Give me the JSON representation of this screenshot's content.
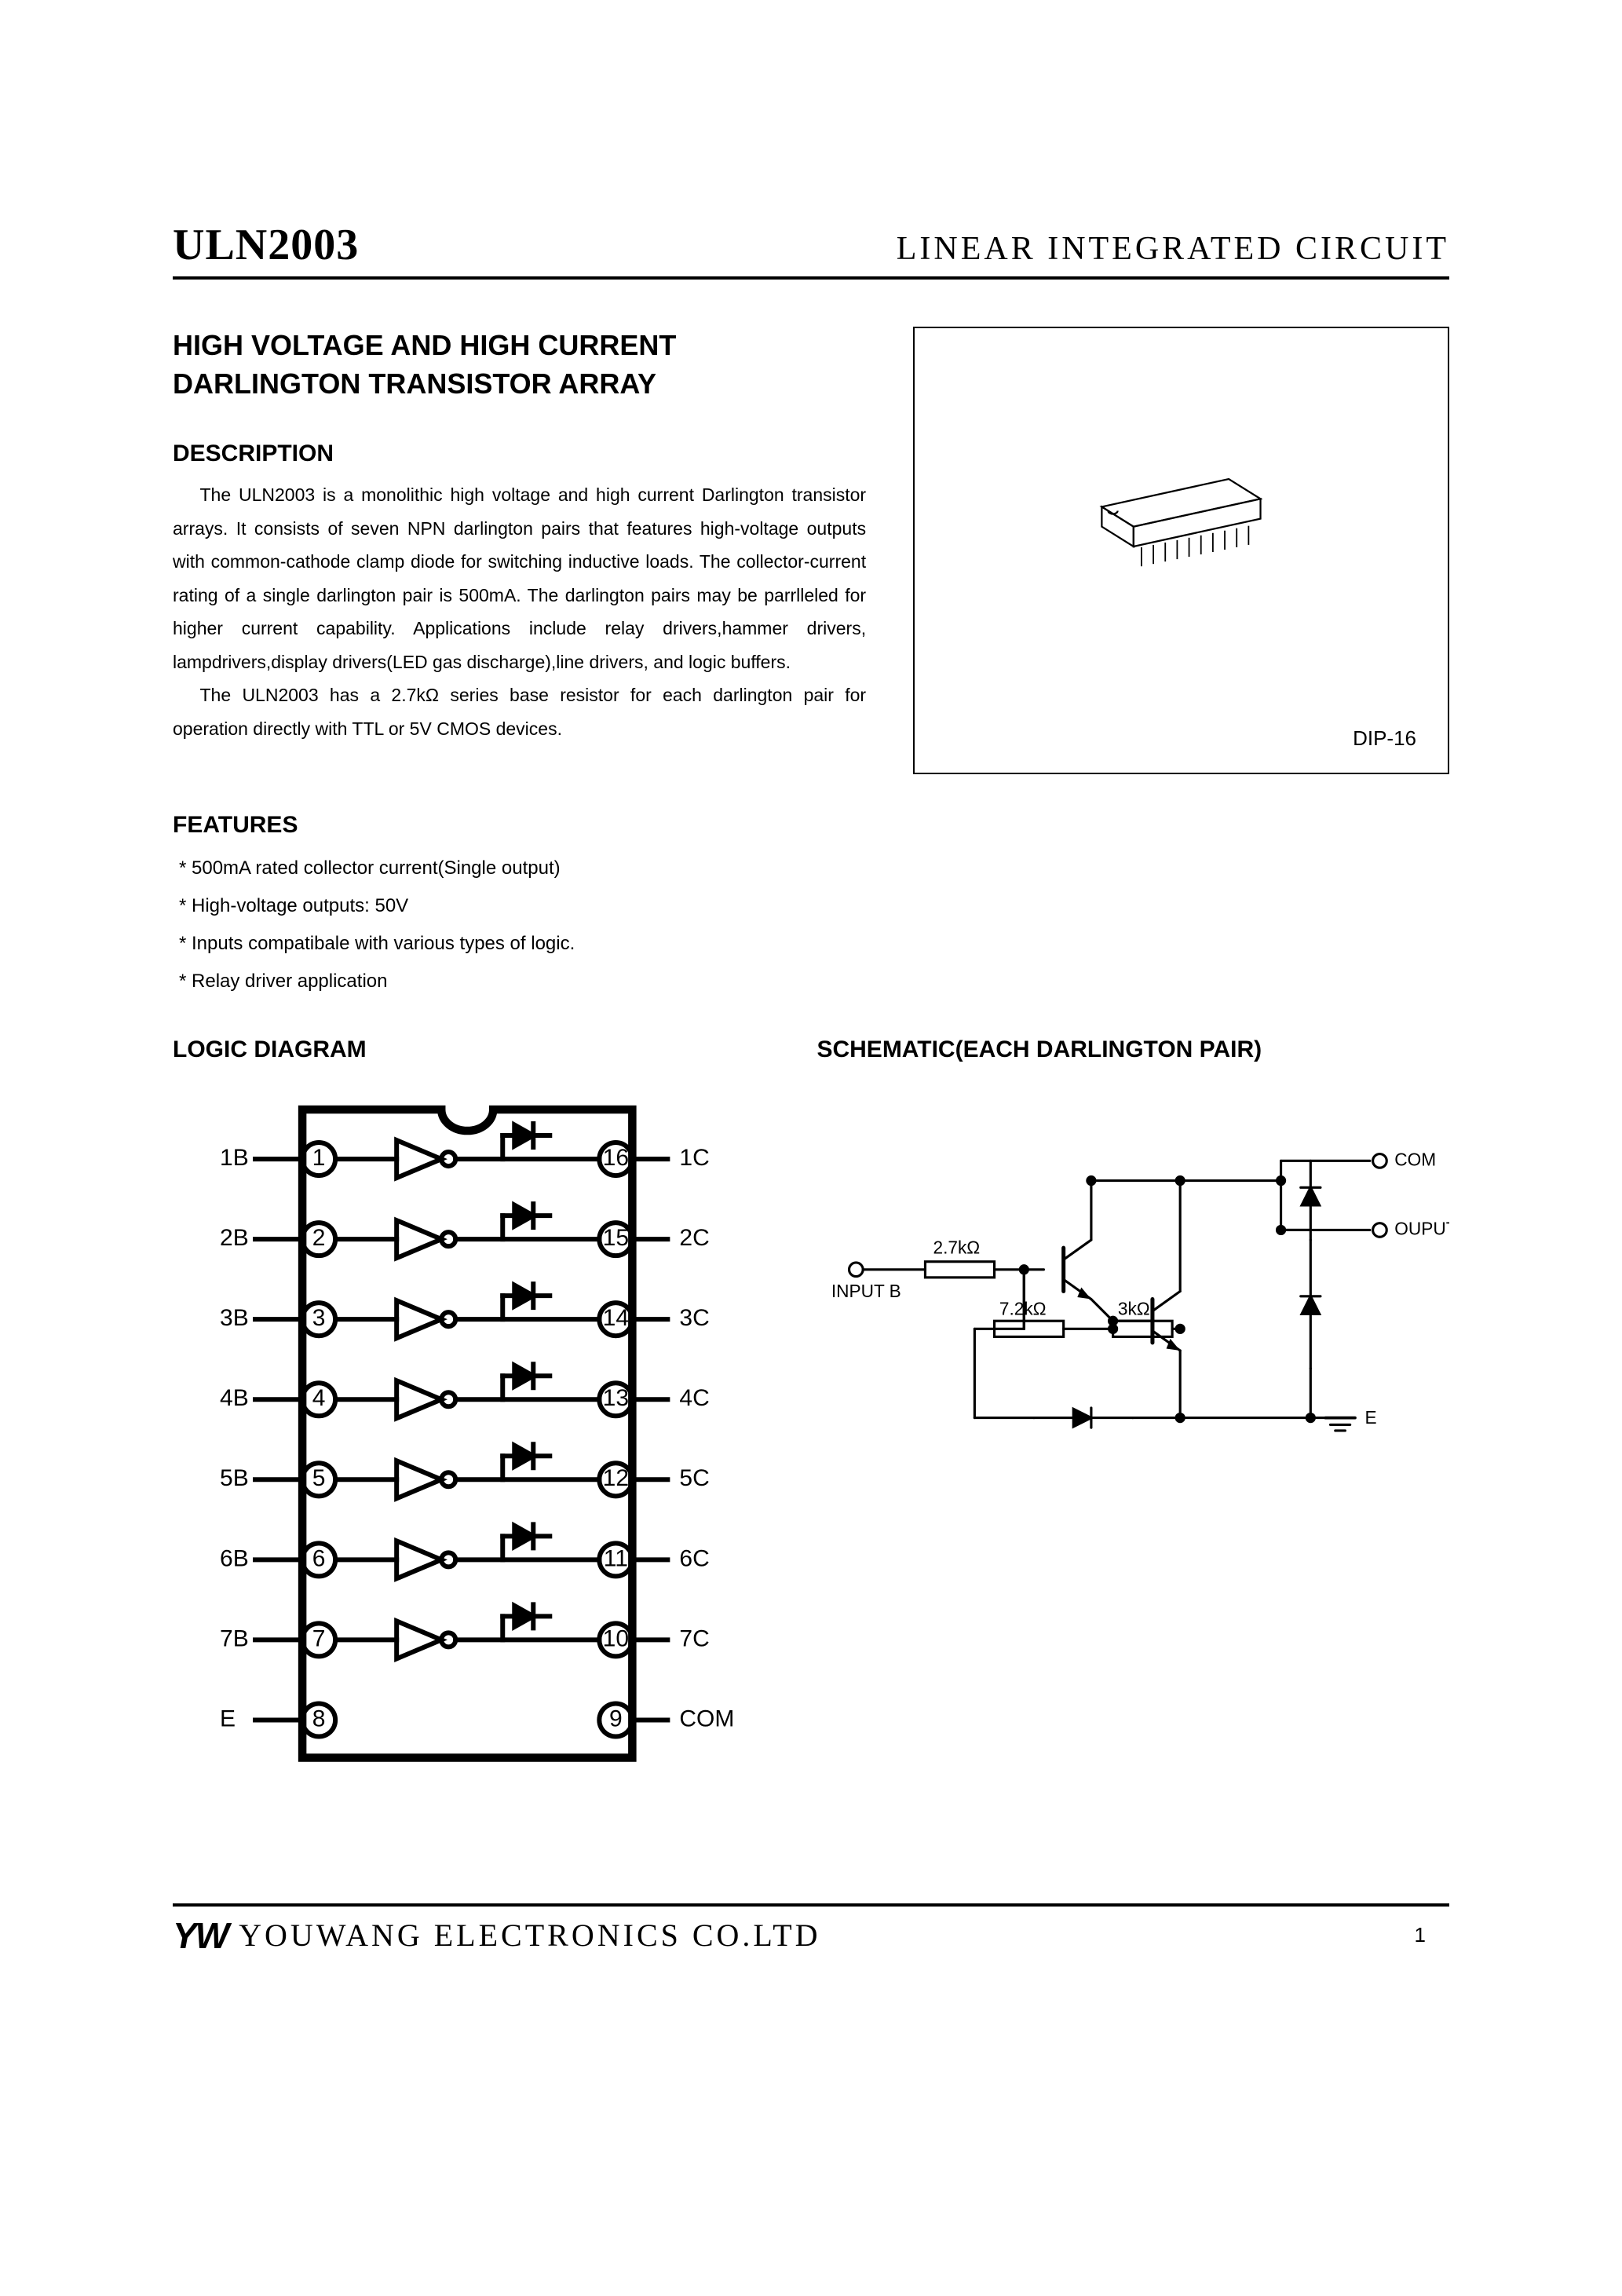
{
  "header": {
    "part_number": "ULN2003",
    "right": "LINEAR INTEGRATED CIRCUIT"
  },
  "title": "HIGH VOLTAGE AND HIGH CURRENT\nDARLINGTON TRANSISTOR ARRAY",
  "sections": {
    "description_h": "DESCRIPTION",
    "description_p1": "The ULN2003 is a monolithic high voltage and high current Darlington transistor arrays. It consists of seven NPN darlington pairs that features high-voltage outputs with common-cathode clamp diode for switching inductive loads. The collector-current rating of a single darlington pair is 500mA. The darlington pairs may be parrlleled for higher current capability. Applications include relay drivers,hammer drivers, lampdrivers,display drivers(LED gas discharge),line drivers, and logic buffers.",
    "description_p2": "The ULN2003 has a 2.7kΩ series base resistor for each darlington pair for operation directly with TTL or 5V CMOS devices.",
    "features_h": "FEATURES",
    "features": [
      "500mA rated collector current(Single output)",
      "High-voltage outputs: 50V",
      "Inputs compatibale with various types of logic.",
      "Relay driver application"
    ],
    "logic_h": "LOGIC DIAGRAM",
    "schematic_h": "SCHEMATIC(EACH DARLINGTON PAIR)"
  },
  "package": {
    "label": "DIP-16"
  },
  "logic_diagram": {
    "stroke": "#000000",
    "stroke_width": 4,
    "thick_stroke_width": 7,
    "font_size": 20,
    "pins_left": [
      "1B",
      "2B",
      "3B",
      "4B",
      "5B",
      "6B",
      "7B",
      "E"
    ],
    "pins_right": [
      "1C",
      "2C",
      "3C",
      "4C",
      "5C",
      "6C",
      "7C",
      "COM"
    ],
    "pins_right_nums": [
      16,
      15,
      14,
      13,
      12,
      11,
      10,
      9
    ],
    "pins_left_nums": [
      1,
      2,
      3,
      4,
      5,
      6,
      7,
      8
    ]
  },
  "schematic": {
    "stroke": "#000000",
    "stroke_width": 2.5,
    "font_size": 18,
    "labels": {
      "input": "INPUT B",
      "r1": "2.7kΩ",
      "r2": "7.2kΩ",
      "r3": "3kΩ",
      "com": "COM",
      "out": "OUPUT C",
      "e": "E"
    }
  },
  "footer": {
    "logo": "YW",
    "company": "YOUWANG ELECTRONICS CO.LTD",
    "page": "1"
  }
}
